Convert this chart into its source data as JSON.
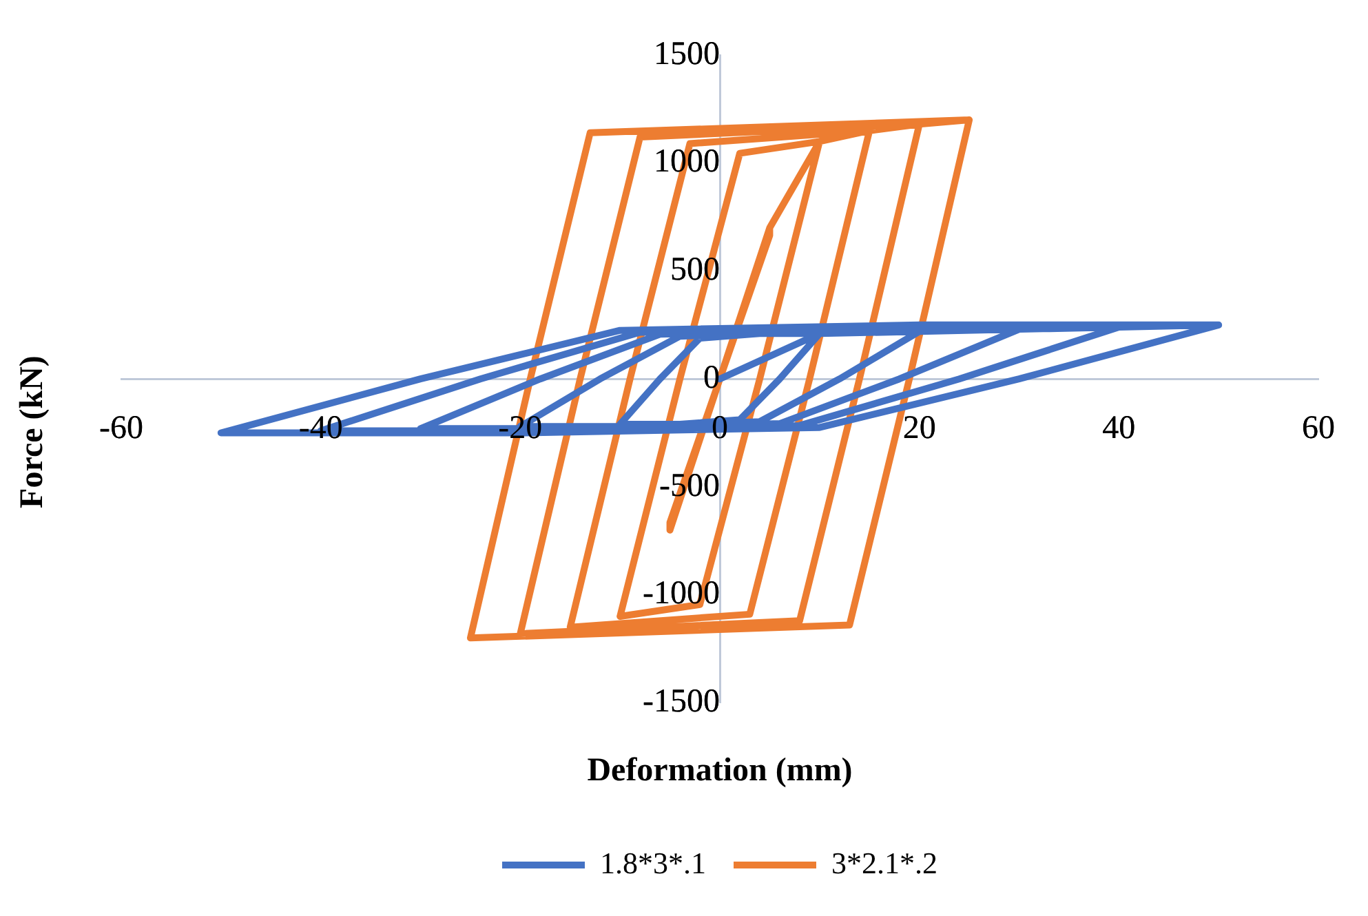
{
  "chart_data": {
    "type": "line",
    "xlabel": "Deformation (mm)",
    "ylabel": "Force (kN)",
    "xlim": [
      -60,
      60
    ],
    "xticks": [
      -60,
      -40,
      -20,
      0,
      20,
      40,
      60
    ],
    "ylim": [
      -1500,
      1500
    ],
    "yticks": [
      -1500,
      -1000,
      -500,
      0,
      500,
      1000,
      1500
    ],
    "grid": false,
    "legend": "bottom",
    "marker": "none",
    "line_style": "solid",
    "series": [
      {
        "name": "1.8*3*.1",
        "color": "#4472c4",
        "x": [
          0,
          10,
          6,
          2,
          -4,
          -10,
          -6,
          -2,
          4,
          10,
          20,
          12,
          4,
          -8,
          -20,
          -12,
          -4,
          8,
          20,
          30,
          18,
          6,
          -12,
          -30,
          -18,
          -6,
          12,
          30,
          40,
          24,
          8,
          -16,
          -40,
          -24,
          -8,
          16,
          40,
          50,
          30,
          10,
          -20,
          -50,
          -30,
          -10,
          20,
          50
        ],
        "values": [
          0,
          210,
          0,
          -189,
          -210,
          -210,
          0,
          189,
          210,
          210,
          220,
          0,
          -198,
          -220,
          -220,
          0,
          198,
          220,
          220,
          230,
          0,
          -207,
          -230,
          -230,
          0,
          207,
          230,
          230,
          240,
          0,
          -216,
          -240,
          -240,
          0,
          216,
          240,
          240,
          250,
          0,
          -225,
          -250,
          -250,
          0,
          225,
          250,
          250
        ]
      },
      {
        "name": "3*2.1*.2",
        "color": "#ed7d31",
        "x": [
          0,
          5,
          0,
          -5,
          -5,
          0,
          5,
          5,
          10,
          4,
          -2,
          -10,
          -4,
          2,
          10,
          15,
          9,
          3,
          -15,
          -9,
          -3,
          15,
          20,
          14,
          8,
          -20,
          -14,
          -8,
          20,
          25,
          19,
          13,
          -25,
          -19,
          -13,
          25
        ],
        "values": [
          0,
          700,
          0,
          -665,
          -700,
          0,
          665,
          700,
          1100,
          0,
          -1045,
          -1100,
          0,
          1045,
          1100,
          1150,
          0,
          -1090,
          -1150,
          0,
          1090,
          1150,
          1180,
          0,
          -1120,
          -1180,
          0,
          1120,
          1180,
          1200,
          0,
          -1140,
          -1200,
          0,
          1140,
          1200
        ]
      }
    ]
  }
}
